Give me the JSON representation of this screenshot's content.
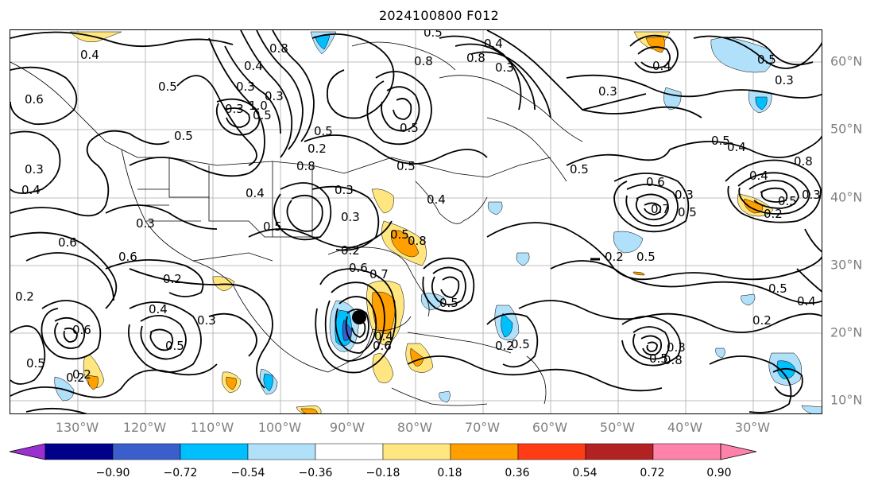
{
  "title": "2024100800 F012",
  "longitude_labels": [
    "130°W",
    "120°W",
    "110°W",
    "100°W",
    "90°W",
    "80°W",
    "70°W",
    "60°W",
    "50°W",
    "40°W",
    "30°W"
  ],
  "latitude_labels": [
    "60°N",
    "50°N",
    "40°N",
    "30°N",
    "20°N",
    "10°N"
  ],
  "colorbar": {
    "tick_labels": [
      "−0.90",
      "−0.72",
      "−0.54",
      "−0.36",
      "−0.18",
      "0.18",
      "0.36",
      "0.54",
      "0.72",
      "0.90"
    ],
    "colors": [
      "#9b30d0",
      "#00008b",
      "#3a5fcd",
      "#00bfff",
      "#b0e0fa",
      "#ffffff",
      "#ffe680",
      "#ffa000",
      "#ff3c14",
      "#b22222",
      "#ff82aa"
    ]
  },
  "contour_labels": [
    "0.4",
    "0.6",
    "0.5",
    "0.3",
    "0.6",
    "0.4",
    "0.2",
    "0.3",
    "0.6",
    "0.2",
    "0.4",
    "0.5",
    "0.3",
    "0.5",
    "0.6",
    "0.2",
    "0.3",
    "0.5",
    "0.3",
    "0.2",
    "0.4",
    "0.3",
    "0.5",
    "0.2",
    "0.6",
    "0.5",
    "0.7",
    "0.8",
    "0.4",
    "0.3",
    "1.0",
    "0.5",
    "0.8",
    "0.3",
    "0.2",
    "0.5",
    "0.4",
    "0.6",
    "0.3",
    "0.7",
    "0.5",
    "0.8",
    "0.2",
    "0.5",
    "0.3",
    "0.5",
    "0.2",
    "0.5",
    "0.4",
    "0.5",
    "0.8",
    "0.3",
    "0.5",
    "0.2",
    "0.5",
    "0.6",
    "0.4",
    "0.3",
    "0.5",
    "0.4",
    "0.8",
    "0.8",
    "0.4",
    "0.3",
    "0.5",
    "0.4",
    "0.5",
    "0.3",
    "0.5",
    "0.4",
    "0.2",
    "0.5",
    "0.8",
    "0.5"
  ]
}
